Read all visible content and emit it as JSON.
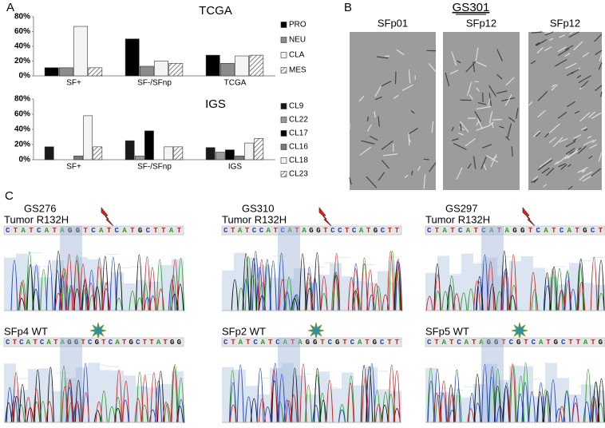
{
  "panels": {
    "a": "A",
    "b": "B",
    "c": "C"
  },
  "chart_data": [
    {
      "type": "bar",
      "title": "TCGA",
      "categories": [
        "SF+",
        "SF-/SFnp",
        "TCGA"
      ],
      "series": [
        {
          "name": "PRO",
          "color": "#000000",
          "values": [
            11,
            50,
            28
          ]
        },
        {
          "name": "NEU",
          "color": "#8c8c8c",
          "values": [
            11,
            13,
            17
          ]
        },
        {
          "name": "CLA",
          "color": "#f4f4f4",
          "values": [
            67,
            20,
            27
          ]
        },
        {
          "name": "MES",
          "color": "#ffffff",
          "hatch": true,
          "values": [
            11,
            17,
            28
          ]
        }
      ],
      "ylim": [
        0,
        80
      ],
      "yticks": [
        {
          "value": 0,
          "label": "0%"
        },
        {
          "value": 20,
          "label": "20%"
        },
        {
          "value": 40,
          "label": "40%"
        },
        {
          "value": 60,
          "label": "60%"
        },
        {
          "value": 80,
          "label": "80%"
        }
      ],
      "legend": "right"
    },
    {
      "type": "bar",
      "title": "IGS",
      "categories": [
        "SF+",
        "SF-/SFnp",
        "IGS"
      ],
      "series": [
        {
          "name": "CL9",
          "color": "#1a1a1a",
          "values": [
            17,
            25,
            16
          ]
        },
        {
          "name": "CL22",
          "color": "#9a9a9a",
          "values": [
            0,
            5,
            10
          ]
        },
        {
          "name": "CL17",
          "color": "#000000",
          "values": [
            0,
            38,
            13
          ]
        },
        {
          "name": "CL16",
          "color": "#7a7a7a",
          "values": [
            5,
            0,
            5
          ]
        },
        {
          "name": "CL18",
          "color": "#f4f4f4",
          "values": [
            58,
            17,
            22
          ]
        },
        {
          "name": "CL23",
          "color": "#ffffff",
          "hatch": true,
          "values": [
            17,
            17,
            28
          ]
        }
      ],
      "ylim": [
        0,
        80
      ],
      "yticks": [
        {
          "value": 0,
          "label": "0%"
        },
        {
          "value": 20,
          "label": "20%"
        },
        {
          "value": 40,
          "label": "40%"
        },
        {
          "value": 60,
          "label": "60%"
        },
        {
          "value": 80,
          "label": "80%"
        }
      ],
      "legend": "right"
    }
  ],
  "panel_b": {
    "title": "GS301",
    "images": [
      "SFp01",
      "SFp12",
      "SFp12"
    ]
  },
  "panel_c": {
    "columns": [
      {
        "name": "GS276",
        "tumor": {
          "label": "Tumor R132H",
          "sequence": "CTATCATAGGTCATCATGCTTAT"
        },
        "wt": {
          "label": "SFp4 WT",
          "sequence": "CTCATCATAGGTCGTCATGCTTATGG"
        }
      },
      {
        "name": "GS310",
        "tumor": {
          "label": "Tumor R132H",
          "sequence": "CTATCCATCATAGGTCCTCATGCTT"
        },
        "wt": {
          "label": "SFp2 WT",
          "sequence": "CTATCATCATAGGTCGTCATGCTT"
        }
      },
      {
        "name": "GS297",
        "tumor": {
          "label": "Tumor R132H",
          "sequence": "CTATCATCATAGGTCATCATGCT"
        },
        "wt": {
          "label": "SFp5 WT",
          "sequence": "CTATCATAGGTCGTCATGCTTATG"
        }
      }
    ]
  }
}
